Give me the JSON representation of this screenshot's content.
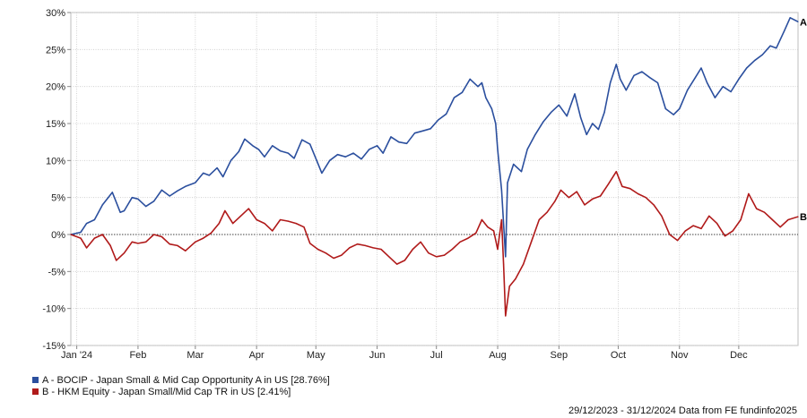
{
  "chart_data": {
    "type": "line",
    "y_tick_labels": [
      "30%",
      "25%",
      "20%",
      "15%",
      "10%",
      "5%",
      "0%",
      "-5%",
      "-10%",
      "-15%"
    ],
    "y_ticks": [
      30,
      25,
      20,
      15,
      10,
      5,
      0,
      -5,
      -10,
      -15
    ],
    "ylim": [
      -15,
      30
    ],
    "x_tick_labels": [
      "Jan '24",
      "Feb",
      "Mar",
      "Apr",
      "May",
      "Jun",
      "Jul",
      "Aug",
      "Sep",
      "Oct",
      "Nov",
      "Dec"
    ],
    "x_ticks": [
      "2024-01-01",
      "2024-02-01",
      "2024-03-01",
      "2024-04-01",
      "2024-05-01",
      "2024-06-01",
      "2024-07-01",
      "2024-08-01",
      "2024-09-01",
      "2024-10-01",
      "2024-11-01",
      "2024-12-01"
    ],
    "xlim": [
      "2023-12-29",
      "2024-12-31"
    ],
    "grid": true,
    "zero_line": true,
    "legend_position": "bottom-left",
    "series": [
      {
        "name": "A - BOCIP - Japan Small & Mid Cap Opportunity A in US [28.76%]",
        "end_label": "A",
        "color": "#2b4f9e",
        "points": [
          [
            "2023-12-29",
            0.0
          ],
          [
            "2024-01-03",
            0.3
          ],
          [
            "2024-01-06",
            1.5
          ],
          [
            "2024-01-10",
            2.0
          ],
          [
            "2024-01-14",
            4.0
          ],
          [
            "2024-01-19",
            5.7
          ],
          [
            "2024-01-23",
            3.0
          ],
          [
            "2024-01-25",
            3.2
          ],
          [
            "2024-01-29",
            5.0
          ],
          [
            "2024-02-01",
            4.8
          ],
          [
            "2024-02-05",
            3.8
          ],
          [
            "2024-02-09",
            4.5
          ],
          [
            "2024-02-13",
            6.0
          ],
          [
            "2024-02-17",
            5.2
          ],
          [
            "2024-02-21",
            5.9
          ],
          [
            "2024-02-25",
            6.5
          ],
          [
            "2024-03-01",
            7.0
          ],
          [
            "2024-03-05",
            8.3
          ],
          [
            "2024-03-08",
            8.0
          ],
          [
            "2024-03-12",
            9.0
          ],
          [
            "2024-03-15",
            7.8
          ],
          [
            "2024-03-19",
            10.0
          ],
          [
            "2024-03-23",
            11.2
          ],
          [
            "2024-03-26",
            12.9
          ],
          [
            "2024-03-30",
            12.0
          ],
          [
            "2024-04-02",
            11.5
          ],
          [
            "2024-04-05",
            10.5
          ],
          [
            "2024-04-09",
            12.0
          ],
          [
            "2024-04-13",
            11.3
          ],
          [
            "2024-04-17",
            11.0
          ],
          [
            "2024-04-20",
            10.3
          ],
          [
            "2024-04-24",
            12.8
          ],
          [
            "2024-04-28",
            12.2
          ],
          [
            "2024-05-02",
            9.6
          ],
          [
            "2024-05-04",
            8.3
          ],
          [
            "2024-05-08",
            10.0
          ],
          [
            "2024-05-12",
            10.8
          ],
          [
            "2024-05-16",
            10.5
          ],
          [
            "2024-05-20",
            11.0
          ],
          [
            "2024-05-24",
            10.2
          ],
          [
            "2024-05-28",
            11.5
          ],
          [
            "2024-06-01",
            12.0
          ],
          [
            "2024-06-04",
            11.0
          ],
          [
            "2024-06-08",
            13.2
          ],
          [
            "2024-06-12",
            12.5
          ],
          [
            "2024-06-16",
            12.3
          ],
          [
            "2024-06-20",
            13.7
          ],
          [
            "2024-06-24",
            14.0
          ],
          [
            "2024-06-28",
            14.3
          ],
          [
            "2024-07-02",
            15.5
          ],
          [
            "2024-07-06",
            16.3
          ],
          [
            "2024-07-10",
            18.5
          ],
          [
            "2024-07-14",
            19.2
          ],
          [
            "2024-07-18",
            21.0
          ],
          [
            "2024-07-22",
            20.0
          ],
          [
            "2024-07-24",
            20.5
          ],
          [
            "2024-07-26",
            18.5
          ],
          [
            "2024-07-29",
            17.0
          ],
          [
            "2024-07-31",
            15.0
          ],
          [
            "2024-08-01",
            11.5
          ],
          [
            "2024-08-03",
            6.0
          ],
          [
            "2024-08-05",
            -3.0
          ],
          [
            "2024-08-06",
            7.0
          ],
          [
            "2024-08-09",
            9.5
          ],
          [
            "2024-08-13",
            8.5
          ],
          [
            "2024-08-16",
            11.5
          ],
          [
            "2024-08-20",
            13.5
          ],
          [
            "2024-08-24",
            15.2
          ],
          [
            "2024-08-28",
            16.5
          ],
          [
            "2024-09-01",
            17.5
          ],
          [
            "2024-09-05",
            16.0
          ],
          [
            "2024-09-09",
            19.0
          ],
          [
            "2024-09-12",
            15.8
          ],
          [
            "2024-09-15",
            13.5
          ],
          [
            "2024-09-18",
            15.0
          ],
          [
            "2024-09-21",
            14.2
          ],
          [
            "2024-09-24",
            16.5
          ],
          [
            "2024-09-27",
            20.5
          ],
          [
            "2024-09-30",
            23.0
          ],
          [
            "2024-10-02",
            21.0
          ],
          [
            "2024-10-05",
            19.5
          ],
          [
            "2024-10-09",
            21.5
          ],
          [
            "2024-10-13",
            22.0
          ],
          [
            "2024-10-17",
            21.2
          ],
          [
            "2024-10-21",
            20.5
          ],
          [
            "2024-10-25",
            17.0
          ],
          [
            "2024-10-29",
            16.2
          ],
          [
            "2024-11-01",
            17.0
          ],
          [
            "2024-11-05",
            19.5
          ],
          [
            "2024-11-09",
            21.2
          ],
          [
            "2024-11-12",
            22.5
          ],
          [
            "2024-11-15",
            20.5
          ],
          [
            "2024-11-19",
            18.5
          ],
          [
            "2024-11-23",
            20.0
          ],
          [
            "2024-11-27",
            19.3
          ],
          [
            "2024-12-01",
            21.0
          ],
          [
            "2024-12-05",
            22.5
          ],
          [
            "2024-12-09",
            23.5
          ],
          [
            "2024-12-13",
            24.3
          ],
          [
            "2024-12-17",
            25.5
          ],
          [
            "2024-12-20",
            25.2
          ],
          [
            "2024-12-24",
            27.5
          ],
          [
            "2024-12-27",
            29.3
          ],
          [
            "2024-12-31",
            28.76
          ]
        ]
      },
      {
        "name": "B - HKM Equity - Japan Small/Mid Cap TR in US [2.41%]",
        "end_label": "B",
        "color": "#b01a1a",
        "points": [
          [
            "2023-12-29",
            0.0
          ],
          [
            "2024-01-03",
            -0.5
          ],
          [
            "2024-01-06",
            -1.8
          ],
          [
            "2024-01-10",
            -0.5
          ],
          [
            "2024-01-14",
            0.0
          ],
          [
            "2024-01-18",
            -1.5
          ],
          [
            "2024-01-21",
            -3.5
          ],
          [
            "2024-01-25",
            -2.5
          ],
          [
            "2024-01-29",
            -1.0
          ],
          [
            "2024-02-01",
            -1.2
          ],
          [
            "2024-02-05",
            -1.0
          ],
          [
            "2024-02-09",
            0.0
          ],
          [
            "2024-02-13",
            -0.3
          ],
          [
            "2024-02-17",
            -1.3
          ],
          [
            "2024-02-21",
            -1.5
          ],
          [
            "2024-02-25",
            -2.2
          ],
          [
            "2024-03-01",
            -1.0
          ],
          [
            "2024-03-05",
            -0.5
          ],
          [
            "2024-03-09",
            0.2
          ],
          [
            "2024-03-13",
            1.5
          ],
          [
            "2024-03-16",
            3.2
          ],
          [
            "2024-03-20",
            1.5
          ],
          [
            "2024-03-24",
            2.5
          ],
          [
            "2024-03-28",
            3.5
          ],
          [
            "2024-04-01",
            2.0
          ],
          [
            "2024-04-05",
            1.5
          ],
          [
            "2024-04-09",
            0.5
          ],
          [
            "2024-04-13",
            2.0
          ],
          [
            "2024-04-17",
            1.8
          ],
          [
            "2024-04-21",
            1.5
          ],
          [
            "2024-04-25",
            1.0
          ],
          [
            "2024-04-28",
            -1.2
          ],
          [
            "2024-05-02",
            -2.0
          ],
          [
            "2024-05-06",
            -2.5
          ],
          [
            "2024-05-10",
            -3.2
          ],
          [
            "2024-05-14",
            -2.8
          ],
          [
            "2024-05-18",
            -1.8
          ],
          [
            "2024-05-22",
            -1.3
          ],
          [
            "2024-05-26",
            -1.5
          ],
          [
            "2024-05-30",
            -1.8
          ],
          [
            "2024-06-03",
            -2.0
          ],
          [
            "2024-06-07",
            -3.0
          ],
          [
            "2024-06-11",
            -4.0
          ],
          [
            "2024-06-15",
            -3.5
          ],
          [
            "2024-06-19",
            -2.0
          ],
          [
            "2024-06-23",
            -1.0
          ],
          [
            "2024-06-27",
            -2.5
          ],
          [
            "2024-07-01",
            -3.0
          ],
          [
            "2024-07-05",
            -2.8
          ],
          [
            "2024-07-09",
            -2.0
          ],
          [
            "2024-07-13",
            -1.0
          ],
          [
            "2024-07-17",
            -0.5
          ],
          [
            "2024-07-21",
            0.2
          ],
          [
            "2024-07-24",
            2.0
          ],
          [
            "2024-07-27",
            1.0
          ],
          [
            "2024-07-30",
            0.5
          ],
          [
            "2024-08-01",
            -2.0
          ],
          [
            "2024-08-03",
            2.0
          ],
          [
            "2024-08-04",
            -4.0
          ],
          [
            "2024-08-05",
            -11.0
          ],
          [
            "2024-08-07",
            -7.0
          ],
          [
            "2024-08-10",
            -6.0
          ],
          [
            "2024-08-14",
            -4.0
          ],
          [
            "2024-08-18",
            -1.0
          ],
          [
            "2024-08-22",
            2.0
          ],
          [
            "2024-08-26",
            3.0
          ],
          [
            "2024-08-30",
            4.5
          ],
          [
            "2024-09-02",
            6.0
          ],
          [
            "2024-09-06",
            5.0
          ],
          [
            "2024-09-10",
            5.8
          ],
          [
            "2024-09-14",
            4.0
          ],
          [
            "2024-09-18",
            4.8
          ],
          [
            "2024-09-22",
            5.2
          ],
          [
            "2024-09-26",
            6.8
          ],
          [
            "2024-09-30",
            8.5
          ],
          [
            "2024-10-03",
            6.5
          ],
          [
            "2024-10-07",
            6.2
          ],
          [
            "2024-10-11",
            5.5
          ],
          [
            "2024-10-15",
            5.0
          ],
          [
            "2024-10-19",
            4.0
          ],
          [
            "2024-10-23",
            2.5
          ],
          [
            "2024-10-27",
            0.0
          ],
          [
            "2024-10-31",
            -0.8
          ],
          [
            "2024-11-04",
            0.5
          ],
          [
            "2024-11-08",
            1.2
          ],
          [
            "2024-11-12",
            0.8
          ],
          [
            "2024-11-16",
            2.5
          ],
          [
            "2024-11-20",
            1.5
          ],
          [
            "2024-11-24",
            -0.2
          ],
          [
            "2024-11-28",
            0.5
          ],
          [
            "2024-12-02",
            2.0
          ],
          [
            "2024-12-06",
            5.5
          ],
          [
            "2024-12-10",
            3.5
          ],
          [
            "2024-12-14",
            3.0
          ],
          [
            "2024-12-18",
            2.0
          ],
          [
            "2024-12-22",
            1.0
          ],
          [
            "2024-12-26",
            2.0
          ],
          [
            "2024-12-31",
            2.41
          ]
        ]
      }
    ]
  },
  "legend": {
    "items": [
      {
        "label": "A - BOCIP - Japan Small & Mid Cap Opportunity A in US [28.76%]",
        "color": "#2b4f9e"
      },
      {
        "label": "B - HKM Equity - Japan Small/Mid Cap TR in US [2.41%]",
        "color": "#b01a1a"
      }
    ]
  },
  "footer": {
    "text": "29/12/2023 - 31/12/2024 Data from FE fundinfo2025"
  }
}
